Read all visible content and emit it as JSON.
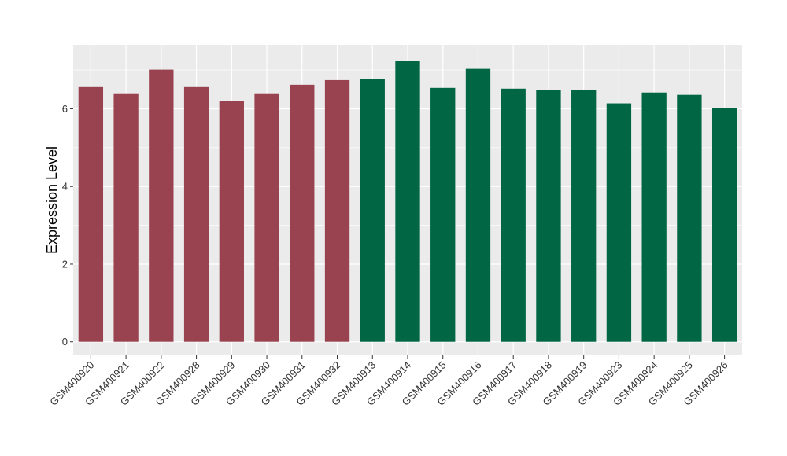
{
  "chart_data": {
    "type": "bar",
    "title": "",
    "xlabel": "",
    "ylabel": "Expression Level",
    "ylim": [
      -0.35,
      7.65
    ],
    "yticks": [
      0,
      2,
      4,
      6
    ],
    "grid": true,
    "legend": "none",
    "categories": [
      "GSM400920",
      "GSM400921",
      "GSM400922",
      "GSM400928",
      "GSM400929",
      "GSM400930",
      "GSM400931",
      "GSM400932",
      "GSM400913",
      "GSM400914",
      "GSM400915",
      "GSM400916",
      "GSM400917",
      "GSM400918",
      "GSM400919",
      "GSM400923",
      "GSM400924",
      "GSM400925",
      "GSM400926"
    ],
    "values": [
      6.56,
      6.4,
      7.01,
      6.56,
      6.2,
      6.4,
      6.62,
      6.74,
      6.76,
      7.24,
      6.54,
      7.03,
      6.52,
      6.48,
      6.48,
      6.14,
      6.42,
      6.36,
      6.02
    ],
    "groups": [
      0,
      0,
      0,
      0,
      0,
      0,
      0,
      0,
      1,
      1,
      1,
      1,
      1,
      1,
      1,
      1,
      1,
      1,
      1
    ],
    "colors": [
      "#9a4350",
      "#006644"
    ],
    "panel_background": "#ebebeb",
    "grid_color": "#ffffff"
  }
}
